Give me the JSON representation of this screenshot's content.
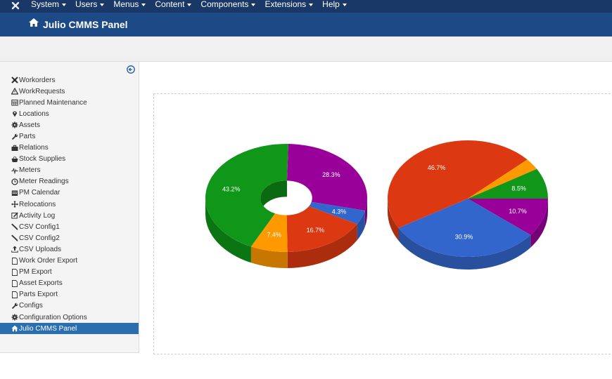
{
  "topbar": {
    "menu": [
      "System",
      "Users",
      "Menus",
      "Content",
      "Components",
      "Extensions",
      "Help"
    ]
  },
  "header": {
    "title": "Julio CMMS Panel"
  },
  "sidebar": {
    "items": [
      {
        "label": "Workorders",
        "icon": "workorders-icon"
      },
      {
        "label": "WorkRequests",
        "icon": "warning-icon"
      },
      {
        "label": "Planned Maintenance",
        "icon": "calendar-grid-icon"
      },
      {
        "label": "Locations",
        "icon": "map-marker-icon"
      },
      {
        "label": "Assets",
        "icon": "gear-icon"
      },
      {
        "label": "Parts",
        "icon": "wrench-icon"
      },
      {
        "label": "Relations",
        "icon": "briefcase-icon"
      },
      {
        "label": "Stock Supplies",
        "icon": "basket-icon"
      },
      {
        "label": "Meters",
        "icon": "pulse-icon"
      },
      {
        "label": "Meter Readings",
        "icon": "clock-icon"
      },
      {
        "label": "PM Calendar",
        "icon": "calendar-icon"
      },
      {
        "label": "Relocations",
        "icon": "move-icon"
      },
      {
        "label": "Activity Log",
        "icon": "edit-icon"
      },
      {
        "label": "CSV Config1",
        "icon": "pen-icon"
      },
      {
        "label": "CSV Config2",
        "icon": "pen-icon"
      },
      {
        "label": "CSV Uploads",
        "icon": "upload-icon"
      },
      {
        "label": "Work Order Export",
        "icon": "file-icon"
      },
      {
        "label": "PM Export",
        "icon": "file-icon"
      },
      {
        "label": "Asset Exports",
        "icon": "file-icon"
      },
      {
        "label": "Parts Export",
        "icon": "file-icon"
      },
      {
        "label": "Configs",
        "icon": "wrench-icon"
      },
      {
        "label": "Configuration Options",
        "icon": "gear-icon"
      },
      {
        "label": "Julio CMMS Panel",
        "icon": "home-icon",
        "active": true
      }
    ]
  },
  "colors": {
    "purple": "#990099",
    "blue": "#3366cc",
    "red": "#dc3912",
    "orange": "#ff9900",
    "green": "#109618",
    "sidebar_active": "#2a6eb0",
    "topbar": "#1a3867",
    "header": "#1c4a86"
  },
  "chart_data": [
    {
      "type": "pie",
      "style": "donut-3d",
      "slices": [
        {
          "value": 28.3,
          "label": "28.3%",
          "color": "#990099"
        },
        {
          "value": 4.3,
          "label": "4.3%",
          "color": "#3366cc"
        },
        {
          "value": 16.7,
          "label": "16.7%",
          "color": "#dc3912"
        },
        {
          "value": 7.4,
          "label": "7.4%",
          "color": "#ff9900"
        },
        {
          "value": 43.2,
          "label": "43.2%",
          "color": "#109618"
        }
      ]
    },
    {
      "type": "pie",
      "style": "3d",
      "slices": [
        {
          "value": 10.7,
          "label": "10.7%",
          "color": "#990099"
        },
        {
          "value": 30.9,
          "label": "30.9%",
          "color": "#3366cc"
        },
        {
          "value": 46.7,
          "label": "46.7%",
          "color": "#dc3912"
        },
        {
          "value": 3.2,
          "label": "",
          "color": "#ff9900"
        },
        {
          "value": 8.5,
          "label": "8.5%",
          "color": "#109618"
        }
      ]
    }
  ]
}
